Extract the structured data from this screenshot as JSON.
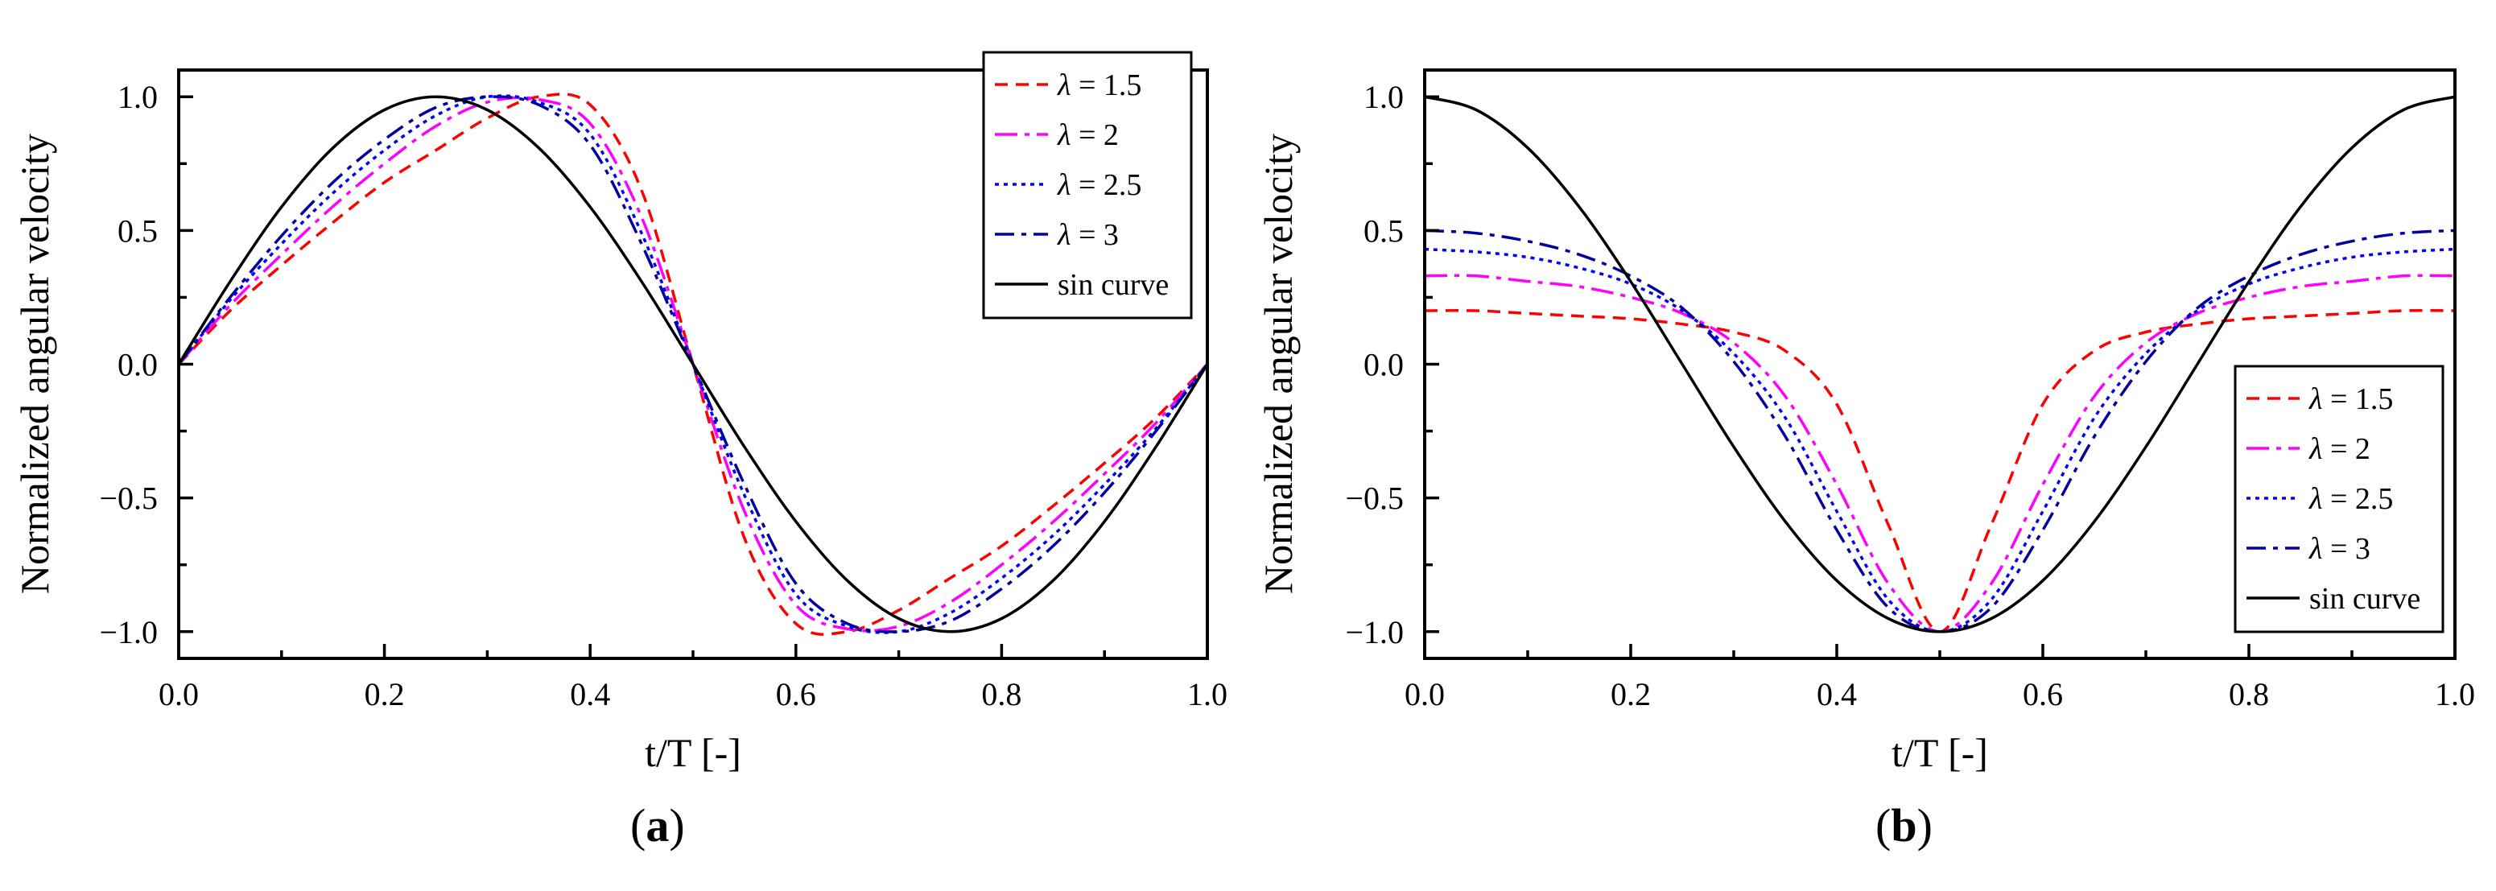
{
  "chart_data": [
    {
      "panel_label_prefix": "(",
      "panel_label_letter": "a",
      "panel_label_suffix": ")",
      "type": "line",
      "xlabel": "t/T [-]",
      "ylabel": "Normalized angular velocity",
      "xlim": [
        0.0,
        1.0
      ],
      "ylim": [
        -1.1,
        1.1
      ],
      "xticks": [
        "0.0",
        "0.2",
        "0.4",
        "0.6",
        "0.8",
        "1.0"
      ],
      "yticks": [
        "−1.0",
        "−0.5",
        "0.0",
        "0.5",
        "1.0"
      ],
      "ytick_values": [
        -1.0,
        -0.5,
        0.0,
        0.5,
        1.0
      ],
      "xtick_values": [
        0.0,
        0.2,
        0.4,
        0.6,
        0.8,
        1.0
      ],
      "grid": false,
      "legend_position": "top-right",
      "x": [
        0.0,
        0.05,
        0.1,
        0.15,
        0.2,
        0.25,
        0.3,
        0.35,
        0.4,
        0.45,
        0.5,
        0.55,
        0.6,
        0.65,
        0.7,
        0.75,
        0.8,
        0.85,
        0.9,
        0.95,
        1.0
      ],
      "series": [
        {
          "name": "λ = 1.5",
          "lambda": "λ",
          "rest": " = 1.5",
          "color": "#ff0000",
          "dash": "16,10",
          "values": [
            0.0,
            0.2,
            0.37,
            0.53,
            0.68,
            0.8,
            0.92,
            1.0,
            0.97,
            0.65,
            0.0,
            -0.65,
            -0.97,
            -1.0,
            -0.92,
            -0.8,
            -0.68,
            -0.53,
            -0.37,
            -0.2,
            0.0
          ]
        },
        {
          "name": "λ = 2",
          "lambda": "λ",
          "rest": " = 2",
          "color": "#ff00ff",
          "dash": "28,9,6,9",
          "values": [
            0.0,
            0.22,
            0.41,
            0.59,
            0.75,
            0.89,
            0.98,
            0.99,
            0.9,
            0.55,
            0.0,
            -0.55,
            -0.9,
            -0.99,
            -0.98,
            -0.89,
            -0.75,
            -0.59,
            -0.41,
            -0.22,
            0.0
          ]
        },
        {
          "name": "λ = 2.5",
          "lambda": "λ",
          "rest": " = 2.5",
          "color": "#0000ff",
          "dash": "5,6",
          "values": [
            0.0,
            0.24,
            0.45,
            0.64,
            0.8,
            0.93,
            1.0,
            0.98,
            0.86,
            0.49,
            0.0,
            -0.49,
            -0.86,
            -0.98,
            -1.0,
            -0.93,
            -0.8,
            -0.64,
            -0.45,
            -0.24,
            0.0
          ]
        },
        {
          "name": "λ = 3",
          "lambda": "λ",
          "rest": " = 3",
          "color": "#0000a0",
          "dash": "24,9,6,9",
          "values": [
            0.0,
            0.25,
            0.48,
            0.68,
            0.84,
            0.96,
            1.0,
            0.97,
            0.82,
            0.45,
            0.0,
            -0.45,
            -0.82,
            -0.97,
            -1.0,
            -0.96,
            -0.84,
            -0.68,
            -0.48,
            -0.25,
            0.0
          ]
        },
        {
          "name": "sin curve",
          "lambda": "",
          "rest": "sin curve",
          "color": "#000000",
          "dash": "",
          "values": [
            0.0,
            0.309,
            0.588,
            0.809,
            0.951,
            1.0,
            0.951,
            0.809,
            0.588,
            0.309,
            0.0,
            -0.309,
            -0.588,
            -0.809,
            -0.951,
            -1.0,
            -0.951,
            -0.809,
            -0.588,
            -0.309,
            0.0
          ]
        }
      ]
    },
    {
      "panel_label_prefix": "(",
      "panel_label_letter": "b",
      "panel_label_suffix": ")",
      "type": "line",
      "xlabel": "t/T [-]",
      "ylabel": "Normalized angular velocity",
      "xlim": [
        0.0,
        1.0
      ],
      "ylim": [
        -1.1,
        1.1
      ],
      "xticks": [
        "0.0",
        "0.2",
        "0.4",
        "0.6",
        "0.8",
        "1.0"
      ],
      "yticks": [
        "−1.0",
        "−0.5",
        "0.0",
        "0.5",
        "1.0"
      ],
      "ytick_values": [
        -1.0,
        -0.5,
        0.0,
        0.5,
        1.0
      ],
      "xtick_values": [
        0.0,
        0.2,
        0.4,
        0.6,
        0.8,
        1.0
      ],
      "grid": false,
      "legend_position": "bottom-right",
      "x": [
        0.0,
        0.05,
        0.1,
        0.15,
        0.2,
        0.25,
        0.3,
        0.35,
        0.4,
        0.45,
        0.5,
        0.55,
        0.6,
        0.65,
        0.7,
        0.75,
        0.8,
        0.85,
        0.9,
        0.95,
        1.0
      ],
      "series": [
        {
          "name": "λ = 1.5",
          "lambda": "λ",
          "rest": " = 1.5",
          "color": "#ff0000",
          "dash": "16,10",
          "values": [
            0.2,
            0.2,
            0.19,
            0.18,
            0.17,
            0.15,
            0.12,
            0.05,
            -0.15,
            -0.6,
            -1.0,
            -0.6,
            -0.15,
            0.05,
            0.12,
            0.15,
            0.17,
            0.18,
            0.19,
            0.2,
            0.2
          ]
        },
        {
          "name": "λ = 2",
          "lambda": "λ",
          "rest": " = 2",
          "color": "#ff00ff",
          "dash": "28,9,6,9",
          "values": [
            0.33,
            0.33,
            0.31,
            0.29,
            0.25,
            0.19,
            0.08,
            -0.12,
            -0.45,
            -0.82,
            -1.0,
            -0.82,
            -0.45,
            -0.12,
            0.08,
            0.19,
            0.25,
            0.29,
            0.31,
            0.33,
            0.33
          ]
        },
        {
          "name": "λ = 2.5",
          "lambda": "λ",
          "rest": " = 2.5",
          "color": "#0000ff",
          "dash": "5,6",
          "values": [
            0.43,
            0.42,
            0.4,
            0.36,
            0.3,
            0.2,
            0.04,
            -0.2,
            -0.55,
            -0.88,
            -1.0,
            -0.88,
            -0.55,
            -0.2,
            0.04,
            0.2,
            0.3,
            0.36,
            0.4,
            0.42,
            0.43
          ]
        },
        {
          "name": "λ = 3",
          "lambda": "λ",
          "rest": " = 3",
          "color": "#0000a0",
          "dash": "24,9,6,9",
          "values": [
            0.5,
            0.49,
            0.46,
            0.41,
            0.33,
            0.21,
            0.01,
            -0.27,
            -0.62,
            -0.91,
            -1.0,
            -0.91,
            -0.62,
            -0.27,
            0.01,
            0.21,
            0.33,
            0.41,
            0.46,
            0.49,
            0.5
          ]
        },
        {
          "name": "sin curve",
          "lambda": "",
          "rest": "sin curve",
          "color": "#000000",
          "dash": "",
          "values": [
            1.0,
            0.951,
            0.809,
            0.588,
            0.309,
            0.0,
            -0.309,
            -0.588,
            -0.809,
            -0.951,
            -1.0,
            -0.951,
            -0.809,
            -0.588,
            -0.309,
            0.0,
            0.309,
            0.588,
            0.809,
            0.951,
            1.0
          ]
        }
      ]
    }
  ]
}
